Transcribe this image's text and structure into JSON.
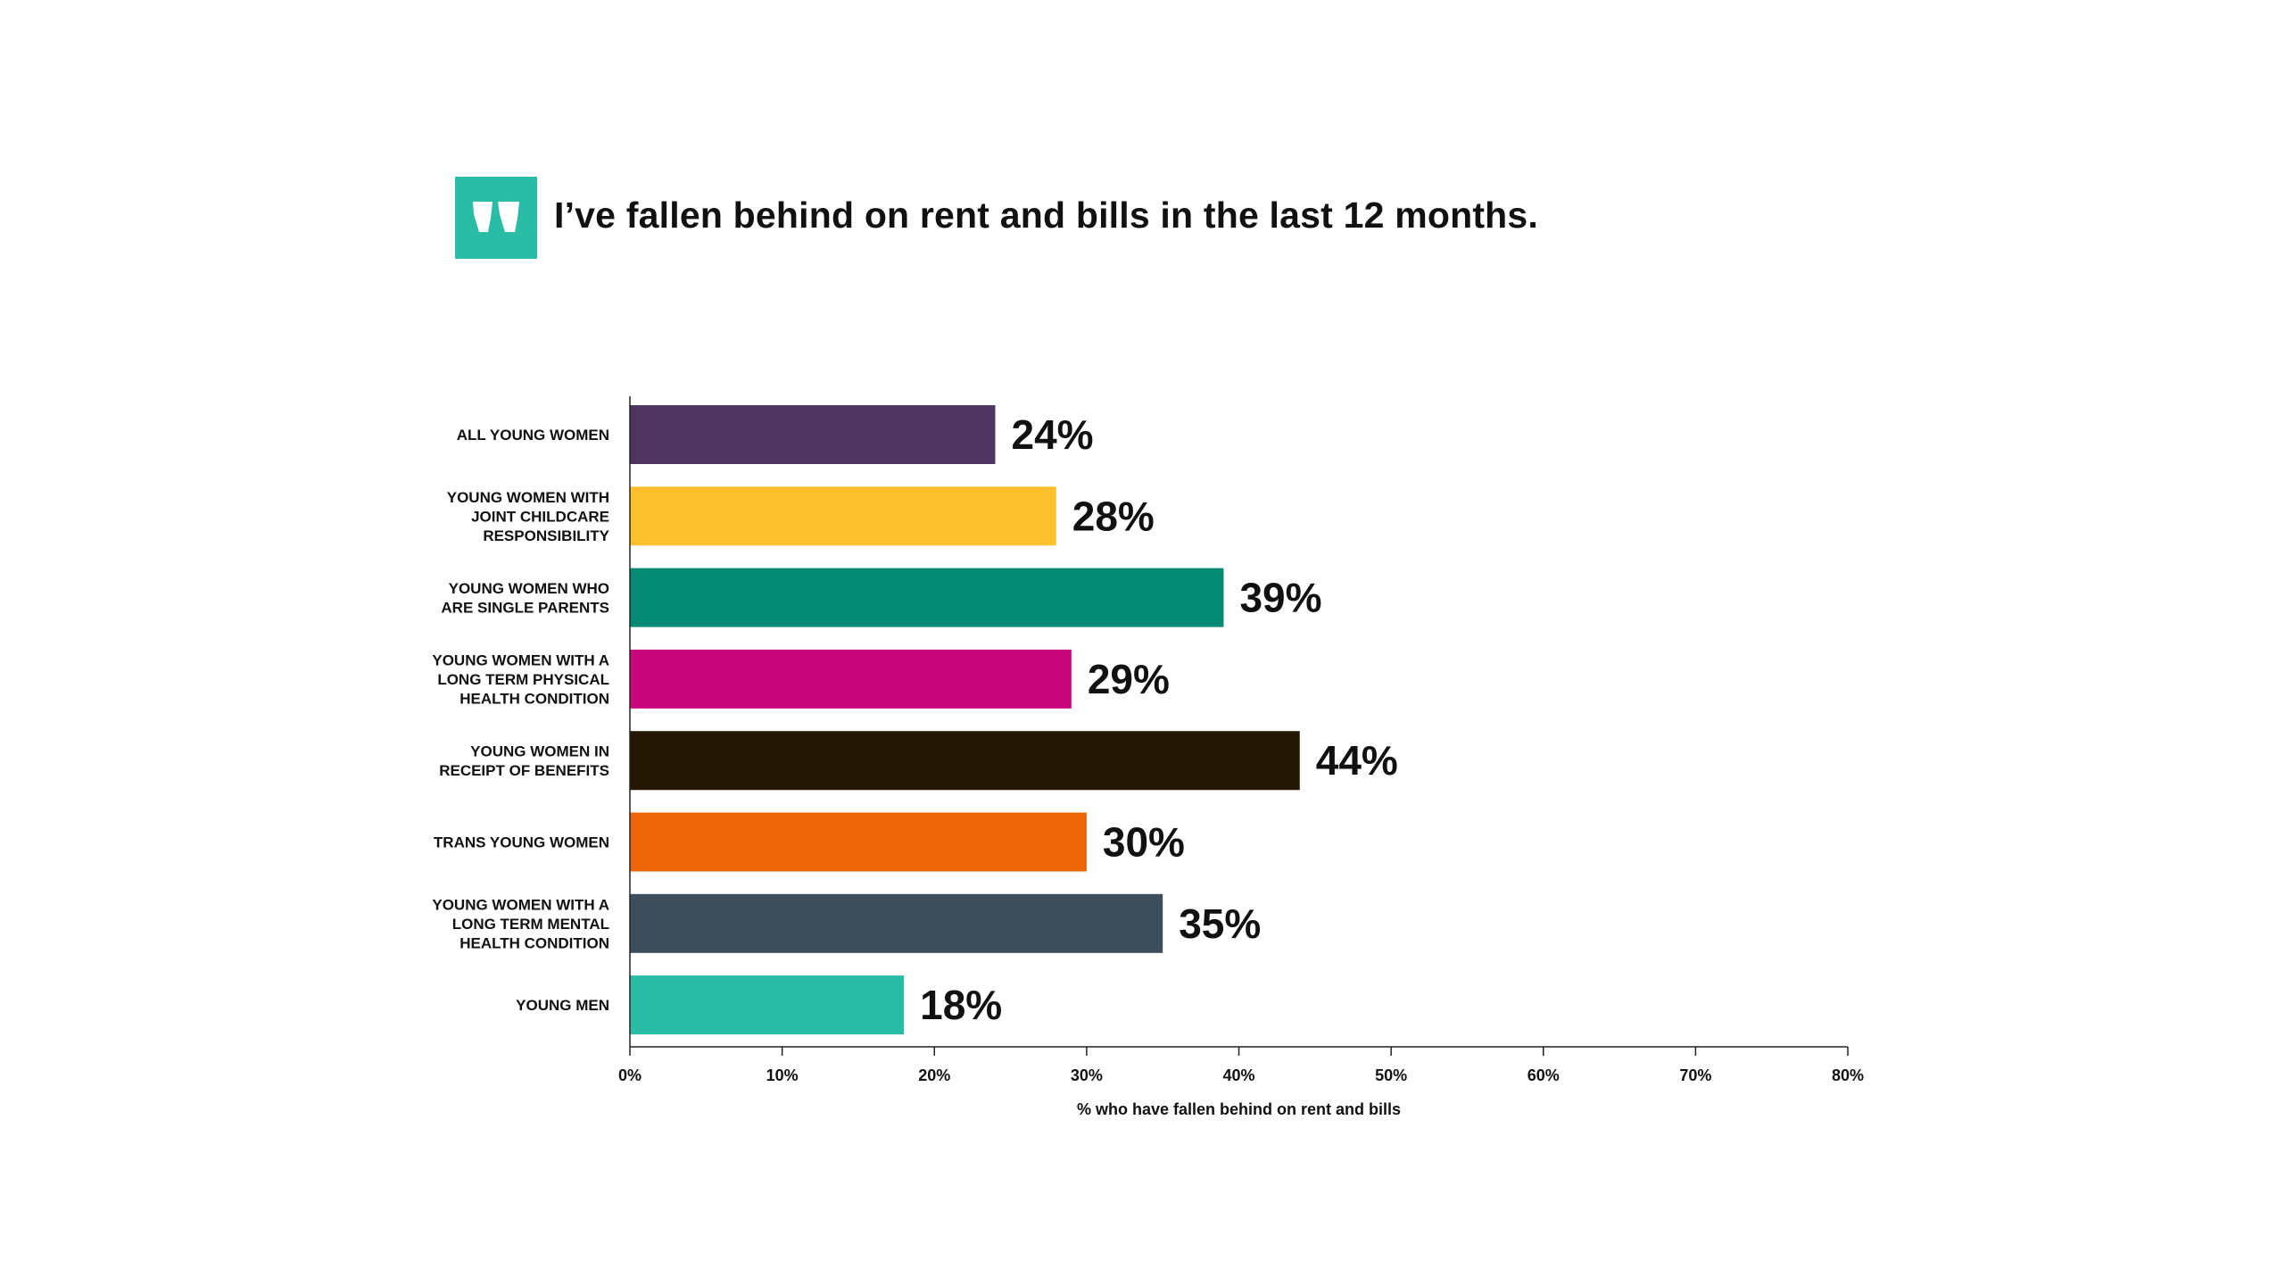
{
  "brand": {
    "logo_icon": "quote-mark-icon",
    "logo_color": "#2bbca6"
  },
  "title": "I’ve fallen behind on rent and bills in the last 12 months.",
  "chart_data": {
    "type": "bar",
    "orientation": "horizontal",
    "title": "I’ve fallen behind on rent and bills in the last 12 months.",
    "categories": [
      "ALL YOUNG WOMEN",
      "YOUNG WOMEN WITH JOINT CHILDCARE RESPONSIBILITY",
      "YOUNG WOMEN WHO ARE SINGLE PARENTS",
      "YOUNG WOMEN WITH A LONG TERM PHYSICAL HEALTH CONDITION",
      "YOUNG WOMEN IN RECEIPT OF BENEFITS",
      "TRANS YOUNG WOMEN",
      "YOUNG WOMEN WITH A LONG TERM MENTAL HEALTH CONDITION",
      "YOUNG MEN"
    ],
    "category_label_lines": [
      [
        "ALL YOUNG WOMEN"
      ],
      [
        "YOUNG WOMEN WITH",
        "JOINT CHILDCARE",
        "RESPONSIBILITY"
      ],
      [
        "YOUNG WOMEN WHO",
        "ARE SINGLE PARENTS"
      ],
      [
        "YOUNG WOMEN WITH A",
        "LONG TERM PHYSICAL",
        "HEALTH CONDITION"
      ],
      [
        "YOUNG WOMEN IN",
        "RECEIPT OF BENEFITS"
      ],
      [
        "TRANS YOUNG WOMEN"
      ],
      [
        "YOUNG WOMEN WITH A",
        "LONG TERM MENTAL",
        "HEALTH CONDITION"
      ],
      [
        "YOUNG MEN"
      ]
    ],
    "values": [
      24,
      28,
      39,
      29,
      44,
      30,
      35,
      18
    ],
    "value_labels": [
      "24%",
      "28%",
      "39%",
      "29%",
      "44%",
      "30%",
      "35%",
      "18%"
    ],
    "colors": [
      "#4e3562",
      "#fcc12d",
      "#058a73",
      "#c8077a",
      "#241804",
      "#ec6608",
      "#3c4e5b",
      "#2bbca6"
    ],
    "xlim": [
      0,
      80
    ],
    "xticks": [
      0,
      10,
      20,
      30,
      40,
      50,
      60,
      70,
      80
    ],
    "xtick_labels": [
      "0%",
      "10%",
      "20%",
      "30%",
      "40%",
      "50%",
      "60%",
      "70%",
      "80%"
    ],
    "xlabel": "% who have fallen behind on rent and bills",
    "ylabel": "",
    "grid": false,
    "legend": "none"
  }
}
